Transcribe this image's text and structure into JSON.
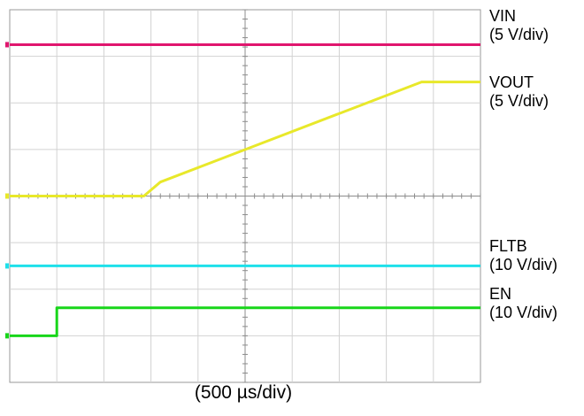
{
  "chart_data": {
    "type": "line",
    "title": "",
    "xlabel": "(500 µs/div)",
    "ylabel": "",
    "grid": true,
    "x_divisions": 10,
    "y_divisions": 8,
    "x_unit": "div",
    "y_unit": "div",
    "xlim": [
      0,
      10
    ],
    "ylim": [
      0,
      8
    ],
    "series": [
      {
        "name": "VIN",
        "scale": "(5 V/div)",
        "color": "#e0166e",
        "points": [
          [
            0,
            7.25
          ],
          [
            10,
            7.25
          ]
        ]
      },
      {
        "name": "VOUT",
        "scale": "(5 V/div)",
        "color": "#e8e82a",
        "points": [
          [
            0,
            4.0
          ],
          [
            2.85,
            4.0
          ],
          [
            3.2,
            4.3
          ],
          [
            8.75,
            6.45
          ],
          [
            10,
            6.45
          ]
        ]
      },
      {
        "name": "FLTB",
        "scale": "(10 V/div)",
        "color": "#1ee0ea",
        "points": [
          [
            0,
            2.5
          ],
          [
            10,
            2.5
          ]
        ]
      },
      {
        "name": "EN",
        "scale": "(10 V/div)",
        "color": "#18d61a",
        "points": [
          [
            0,
            1.0
          ],
          [
            1.0,
            1.0
          ],
          [
            1.0,
            1.6
          ],
          [
            10,
            1.6
          ]
        ]
      }
    ]
  }
}
